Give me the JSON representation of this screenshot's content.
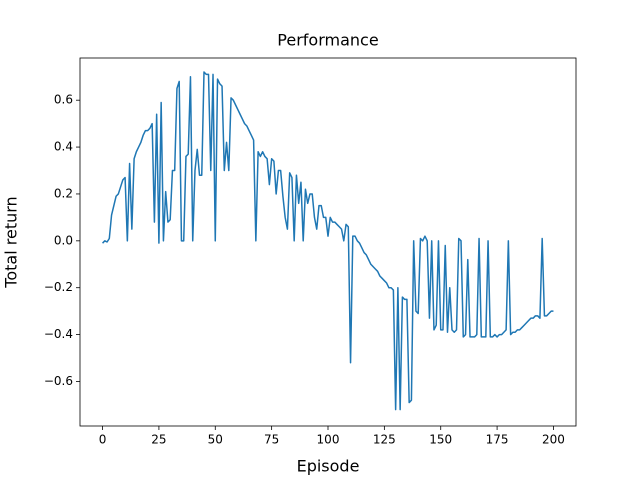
{
  "chart_data": {
    "type": "line",
    "title": "Performance",
    "x_label": "Episode",
    "y_label": "Total return",
    "color": "#1f77b4",
    "x": [
      0,
      1,
      2,
      3,
      4,
      5,
      6,
      7,
      8,
      9,
      10,
      11,
      12,
      13,
      14,
      15,
      16,
      17,
      18,
      19,
      20,
      21,
      22,
      23,
      24,
      25,
      26,
      27,
      28,
      29,
      30,
      31,
      32,
      33,
      34,
      35,
      36,
      37,
      38,
      39,
      40,
      41,
      42,
      43,
      44,
      45,
      46,
      47,
      48,
      49,
      50,
      51,
      52,
      53,
      54,
      55,
      56,
      57,
      58,
      59,
      60,
      61,
      62,
      63,
      64,
      65,
      66,
      67,
      68,
      69,
      70,
      71,
      72,
      73,
      74,
      75,
      76,
      77,
      78,
      79,
      80,
      81,
      82,
      83,
      84,
      85,
      86,
      87,
      88,
      89,
      90,
      91,
      92,
      93,
      94,
      95,
      96,
      97,
      98,
      99,
      100,
      101,
      102,
      103,
      104,
      105,
      106,
      107,
      108,
      109,
      110,
      111,
      112,
      113,
      114,
      115,
      116,
      117,
      118,
      119,
      120,
      121,
      122,
      123,
      124,
      125,
      126,
      127,
      128,
      129,
      130,
      131,
      132,
      133,
      134,
      135,
      136,
      137,
      138,
      139,
      140,
      141,
      142,
      143,
      144,
      145,
      146,
      147,
      148,
      149,
      150,
      151,
      152,
      153,
      154,
      155,
      156,
      157,
      158,
      159,
      160,
      161,
      162,
      163,
      164,
      165,
      166,
      167,
      168,
      169,
      170,
      171,
      172,
      173,
      174,
      175,
      176,
      177,
      178,
      179,
      180,
      181,
      182,
      183,
      184,
      185,
      186,
      187,
      188,
      189,
      190,
      191,
      192,
      193,
      194,
      195,
      196,
      197,
      198,
      199,
      200
    ],
    "values": [
      -0.01,
      0.0,
      -0.005,
      0.01,
      0.11,
      0.15,
      0.19,
      0.2,
      0.23,
      0.26,
      0.27,
      0.0,
      0.33,
      0.05,
      0.35,
      0.38,
      0.4,
      0.42,
      0.45,
      0.47,
      0.47,
      0.48,
      0.5,
      0.08,
      0.54,
      -0.01,
      0.59,
      0.0,
      0.21,
      0.08,
      0.09,
      0.3,
      0.3,
      0.65,
      0.68,
      0.0,
      0.0,
      0.36,
      0.37,
      0.7,
      0.0,
      0.3,
      0.39,
      0.28,
      0.28,
      0.72,
      0.71,
      0.71,
      0.3,
      0.71,
      0.0,
      0.69,
      0.67,
      0.66,
      0.3,
      0.42,
      0.3,
      0.61,
      0.6,
      0.58,
      0.56,
      0.54,
      0.52,
      0.5,
      0.49,
      0.47,
      0.45,
      0.43,
      0.0,
      0.38,
      0.36,
      0.38,
      0.36,
      0.35,
      0.24,
      0.35,
      0.34,
      0.2,
      0.3,
      0.3,
      0.19,
      0.1,
      0.05,
      0.29,
      0.27,
      0.0,
      0.28,
      0.16,
      0.25,
      0.0,
      0.22,
      0.16,
      0.2,
      0.2,
      0.1,
      0.05,
      0.15,
      0.15,
      0.1,
      0.1,
      0.02,
      0.1,
      0.08,
      0.08,
      0.07,
      0.06,
      0.05,
      0.0,
      0.07,
      0.06,
      -0.52,
      0.02,
      0.02,
      0.0,
      -0.01,
      -0.03,
      -0.05,
      -0.06,
      -0.08,
      -0.1,
      -0.11,
      -0.12,
      -0.13,
      -0.15,
      -0.16,
      -0.17,
      -0.18,
      -0.2,
      -0.2,
      -0.21,
      -0.72,
      -0.2,
      -0.72,
      -0.24,
      -0.25,
      -0.25,
      -0.69,
      -0.68,
      0.0,
      -0.3,
      -0.31,
      0.01,
      0.0,
      0.02,
      0.0,
      -0.33,
      0.0,
      -0.38,
      -0.36,
      0.0,
      -0.38,
      -0.38,
      -0.02,
      -0.39,
      -0.2,
      -0.38,
      -0.39,
      -0.38,
      0.01,
      0.0,
      -0.41,
      -0.4,
      -0.08,
      -0.41,
      -0.41,
      -0.41,
      -0.4,
      0.01,
      -0.41,
      -0.41,
      -0.41,
      0.0,
      -0.41,
      -0.41,
      -0.4,
      -0.41,
      -0.4,
      -0.4,
      -0.39,
      -0.38,
      0.0,
      -0.4,
      -0.39,
      -0.39,
      -0.38,
      -0.38,
      -0.37,
      -0.36,
      -0.35,
      -0.34,
      -0.33,
      -0.33,
      -0.32,
      -0.32,
      -0.33,
      0.01,
      -0.32,
      -0.32,
      -0.31,
      -0.3,
      -0.3
    ],
    "xlim": [
      -10,
      210
    ],
    "xticks": [
      0,
      25,
      50,
      75,
      100,
      125,
      150,
      175,
      200
    ],
    "ylim": [
      -0.79,
      0.78
    ],
    "yticks": [
      {
        "value": -0.6,
        "label": "−0.6"
      },
      {
        "value": -0.4,
        "label": "−0.4"
      },
      {
        "value": -0.2,
        "label": "−0.2"
      },
      {
        "value": 0,
        "label": "0.0"
      },
      {
        "value": 0.2,
        "label": "0.2"
      },
      {
        "value": 0.4,
        "label": "0.4"
      },
      {
        "value": 0.6,
        "label": "0.6"
      }
    ]
  }
}
